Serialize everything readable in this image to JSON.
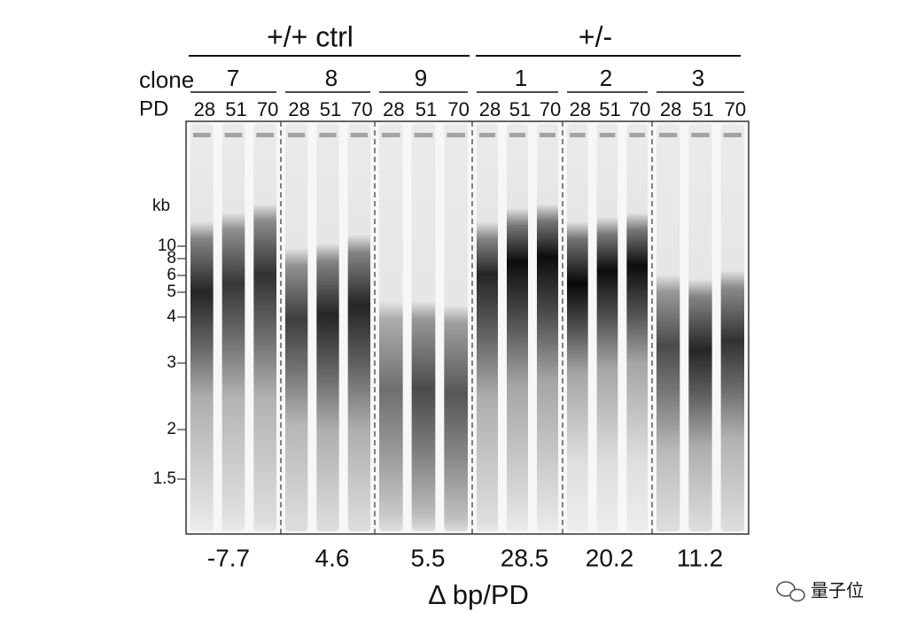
{
  "groups": [
    {
      "label": "+/+ ctrl"
    },
    {
      "label": "+/-"
    }
  ],
  "clone_label": "clone",
  "pd_label": "PD",
  "clones": [
    {
      "label": "7",
      "lanes": [
        "28",
        "51",
        "70"
      ],
      "delta": "-7.7"
    },
    {
      "label": "8",
      "lanes": [
        "28",
        "51",
        "70"
      ],
      "delta": "4.6"
    },
    {
      "label": "9",
      "lanes": [
        "28",
        "51",
        "70"
      ],
      "delta": "5.5"
    },
    {
      "label": "1",
      "lanes": [
        "28",
        "51",
        "70"
      ],
      "delta": "28.5"
    },
    {
      "label": "2",
      "lanes": [
        "28",
        "51",
        "70"
      ],
      "delta": "20.2"
    },
    {
      "label": "3",
      "lanes": [
        "28",
        "51",
        "70"
      ],
      "delta": "11.2"
    }
  ],
  "marker_unit": "kb",
  "markers": [
    "10",
    "8",
    "6",
    "5",
    "4",
    "3",
    "2",
    "1.5"
  ],
  "x_label": "Δ bp/PD",
  "watermark": "量子位"
}
